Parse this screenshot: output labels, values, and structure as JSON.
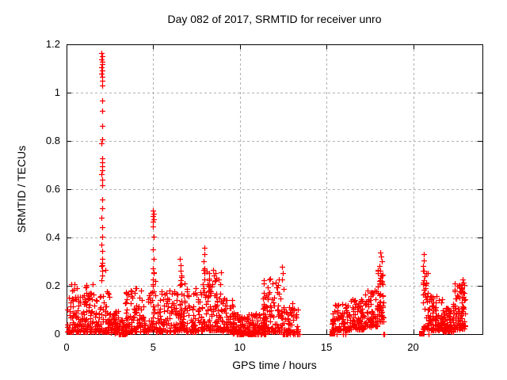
{
  "chart_data": {
    "type": "scatter",
    "title": "Day 082 of 2017, SRMTID for receiver unro",
    "xlabel": "GPS time / hours",
    "ylabel": "SRMTID / TECUs",
    "xlim": [
      0,
      24
    ],
    "ylim": [
      0,
      1.2
    ],
    "xticks": [
      {
        "v": 0,
        "label": "0"
      },
      {
        "v": 5,
        "label": "5"
      },
      {
        "v": 10,
        "label": "10"
      },
      {
        "v": 15,
        "label": "15"
      },
      {
        "v": 20,
        "label": "20"
      }
    ],
    "yticks": [
      {
        "v": 0,
        "label": "0"
      },
      {
        "v": 0.2,
        "label": "0.2"
      },
      {
        "v": 0.4,
        "label": "0.4"
      },
      {
        "v": 0.6,
        "label": "0.6"
      },
      {
        "v": 0.8,
        "label": "0.8"
      },
      {
        "v": 1,
        "label": "1"
      },
      {
        "v": 1.2,
        "label": "1.2"
      }
    ],
    "grid": true,
    "legend": false,
    "marker": "plus",
    "colors": {
      "marker": "#ff0000",
      "grid": "#b0b0b0",
      "border": "#000000",
      "text": "#000000",
      "background": "#ffffff"
    },
    "seed": 42,
    "clusters": [
      {
        "x0": 0.02,
        "x1": 2.0,
        "n": 190,
        "ymin": 0.01,
        "ymax": 0.21,
        "skew": 2.6
      },
      {
        "x0": 2.0,
        "x1": 2.5,
        "n": 48,
        "ymin": 0.01,
        "ymax": 0.3,
        "skew": 2.6
      },
      {
        "x0": 2.5,
        "x1": 3.0,
        "n": 40,
        "ymin": 0.005,
        "ymax": 0.1,
        "skew": 2.0
      },
      {
        "x0": 2.75,
        "x1": 3.5,
        "n": 50,
        "ymin": 0.002,
        "ymax": 0.07,
        "skew": 1.6
      },
      {
        "x0": 3.4,
        "x1": 4.9,
        "n": 115,
        "ymin": 0.01,
        "ymax": 0.19,
        "skew": 2.4
      },
      {
        "x0": 4.85,
        "x1": 5.15,
        "n": 24,
        "ymin": 0.02,
        "ymax": 0.26,
        "skew": 1.8
      },
      {
        "x0": 5.1,
        "x1": 6.45,
        "n": 115,
        "ymin": 0.01,
        "ymax": 0.18,
        "skew": 2.4
      },
      {
        "x0": 6.45,
        "x1": 6.85,
        "n": 45,
        "ymin": 0.015,
        "ymax": 0.24,
        "skew": 2.0
      },
      {
        "x0": 6.85,
        "x1": 7.85,
        "n": 85,
        "ymin": 0.01,
        "ymax": 0.19,
        "skew": 2.3
      },
      {
        "x0": 7.85,
        "x1": 8.15,
        "n": 28,
        "ymin": 0.02,
        "ymax": 0.28,
        "skew": 1.8
      },
      {
        "x0": 8.15,
        "x1": 8.95,
        "n": 85,
        "ymin": 0.015,
        "ymax": 0.26,
        "skew": 2.2
      },
      {
        "x0": 8.95,
        "x1": 9.65,
        "n": 60,
        "ymin": 0.01,
        "ymax": 0.16,
        "skew": 2.2
      },
      {
        "x0": 9.6,
        "x1": 11.5,
        "n": 175,
        "ymin": 0.001,
        "ymax": 0.085,
        "skew": 1.8
      },
      {
        "x0": 11.3,
        "x1": 12.55,
        "n": 115,
        "ymin": 0.01,
        "ymax": 0.235,
        "skew": 2.2
      },
      {
        "x0": 12.55,
        "x1": 13.35,
        "n": 55,
        "ymin": 0.005,
        "ymax": 0.13,
        "skew": 2.0
      },
      {
        "x0": 15.3,
        "x1": 16.3,
        "n": 85,
        "ymin": 0.015,
        "ymax": 0.125,
        "skew": 2.0
      },
      {
        "x0": 16.3,
        "x1": 17.2,
        "n": 85,
        "ymin": 0.02,
        "ymax": 0.15,
        "skew": 1.9
      },
      {
        "x0": 17.2,
        "x1": 17.95,
        "n": 75,
        "ymin": 0.03,
        "ymax": 0.19,
        "skew": 1.8
      },
      {
        "x0": 17.95,
        "x1": 18.3,
        "n": 45,
        "ymin": 0.05,
        "ymax": 0.3,
        "skew": 1.7
      },
      {
        "x0": 20.55,
        "x1": 20.85,
        "n": 32,
        "ymin": 0.02,
        "ymax": 0.28,
        "skew": 1.8
      },
      {
        "x0": 20.85,
        "x1": 21.7,
        "n": 95,
        "ymin": 0.015,
        "ymax": 0.165,
        "skew": 2.2
      },
      {
        "x0": 21.7,
        "x1": 22.35,
        "n": 80,
        "ymin": 0.01,
        "ymax": 0.125,
        "skew": 2.2
      },
      {
        "x0": 22.35,
        "x1": 23.0,
        "n": 85,
        "ymin": 0.02,
        "ymax": 0.21,
        "skew": 1.9
      }
    ],
    "spikes": [
      [
        2.03,
        1.165
      ],
      [
        2.05,
        1.152
      ],
      [
        2.02,
        1.138
      ],
      [
        2.06,
        1.128
      ],
      [
        2.04,
        1.118
      ],
      [
        2.03,
        1.105
      ],
      [
        2.05,
        1.092
      ],
      [
        2.02,
        1.078
      ],
      [
        2.06,
        1.065
      ],
      [
        2.04,
        1.048
      ],
      [
        2.07,
        1.03
      ],
      [
        2.05,
        0.968
      ],
      [
        2.04,
        0.925
      ],
      [
        2.06,
        0.862
      ],
      [
        2.05,
        0.805
      ],
      [
        2.03,
        0.79
      ],
      [
        2.05,
        0.728
      ],
      [
        2.04,
        0.712
      ],
      [
        2.06,
        0.695
      ],
      [
        2.05,
        0.678
      ],
      [
        2.03,
        0.662
      ],
      [
        2.06,
        0.64
      ],
      [
        2.04,
        0.615
      ],
      [
        2.05,
        0.558
      ],
      [
        2.07,
        0.52
      ],
      [
        2.03,
        0.482
      ],
      [
        2.05,
        0.443
      ],
      [
        2.06,
        0.402
      ],
      [
        2.02,
        0.372
      ],
      [
        2.04,
        0.345
      ],
      [
        2.06,
        0.312
      ],
      [
        2.03,
        0.282
      ],
      [
        2.05,
        0.262
      ],
      [
        2.04,
        0.242
      ],
      [
        2.02,
        0.222
      ],
      [
        5.0,
        0.512
      ],
      [
        5.02,
        0.5
      ],
      [
        4.98,
        0.49
      ],
      [
        5.01,
        0.476
      ],
      [
        4.99,
        0.465
      ],
      [
        5.0,
        0.447
      ],
      [
        5.02,
        0.402
      ],
      [
        4.99,
        0.352
      ],
      [
        5.01,
        0.312
      ],
      [
        5.0,
        0.272
      ],
      [
        5.02,
        0.252
      ],
      [
        4.98,
        0.226
      ],
      [
        5.0,
        0.205
      ],
      [
        6.55,
        0.312
      ],
      [
        6.6,
        0.286
      ],
      [
        6.58,
        0.262
      ],
      [
        6.62,
        0.242
      ],
      [
        6.57,
        0.222
      ],
      [
        6.6,
        0.205
      ],
      [
        7.95,
        0.358
      ],
      [
        7.97,
        0.332
      ],
      [
        7.93,
        0.302
      ],
      [
        7.96,
        0.272
      ],
      [
        7.94,
        0.252
      ],
      [
        7.97,
        0.225
      ],
      [
        8.45,
        0.265
      ],
      [
        8.52,
        0.242
      ],
      [
        8.58,
        0.222
      ],
      [
        8.4,
        0.205
      ],
      [
        12.45,
        0.278
      ],
      [
        12.47,
        0.252
      ],
      [
        12.42,
        0.225
      ],
      [
        18.1,
        0.338
      ],
      [
        18.16,
        0.322
      ],
      [
        18.2,
        0.302
      ],
      [
        18.05,
        0.282
      ],
      [
        18.12,
        0.262
      ],
      [
        18.18,
        0.242
      ],
      [
        18.08,
        0.222
      ],
      [
        18.22,
        0.205
      ],
      [
        20.6,
        0.332
      ],
      [
        20.62,
        0.305
      ],
      [
        20.58,
        0.282
      ],
      [
        20.61,
        0.262
      ],
      [
        20.63,
        0.222
      ],
      [
        20.59,
        0.205
      ],
      [
        20.62,
        0.182
      ],
      [
        22.85,
        0.225
      ],
      [
        22.9,
        0.212
      ],
      [
        22.95,
        0.202
      ],
      [
        22.8,
        0.192
      ]
    ],
    "zero_rows": [
      {
        "x0": 3.0,
        "x1": 3.4,
        "n": 10
      },
      {
        "x0": 9.8,
        "x1": 11.4,
        "n": 28
      },
      {
        "x0": 12.4,
        "x1": 13.45,
        "n": 14
      },
      {
        "x0": 15.45,
        "x1": 15.6,
        "n": 2
      },
      {
        "x0": 15.9,
        "x1": 16.1,
        "n": 3
      },
      {
        "x0": 18.25,
        "x1": 18.45,
        "n": 4
      },
      {
        "x0": 20.75,
        "x1": 20.95,
        "n": 3
      }
    ],
    "square_markers_x": [
      15.3,
      20.48
    ]
  }
}
